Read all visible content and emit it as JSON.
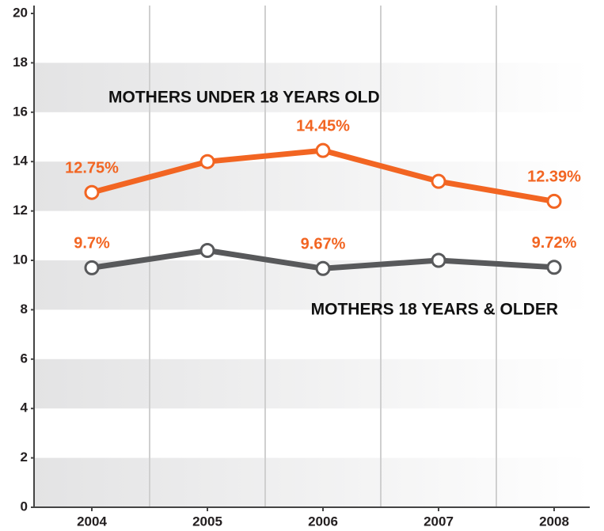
{
  "chart_data": {
    "type": "line",
    "categories": [
      "2004",
      "2005",
      "2006",
      "2007",
      "2008"
    ],
    "series": [
      {
        "name": "MOTHERS UNDER 18 YEARS OLD",
        "color": "#f26522",
        "values": [
          12.75,
          14.0,
          14.45,
          13.2,
          12.39
        ],
        "value_labels": [
          "12.75%",
          null,
          "14.45%",
          null,
          "12.39%"
        ]
      },
      {
        "name": "MOTHERS 18 YEARS & OLDER",
        "color": "#58595b",
        "values": [
          9.7,
          10.4,
          9.67,
          10.0,
          9.72
        ],
        "value_labels": [
          "9.7%",
          null,
          "9.67%",
          null,
          "9.72%"
        ]
      }
    ],
    "ylim": [
      0,
      20
    ],
    "yticks": [
      0,
      2,
      4,
      6,
      8,
      10,
      12,
      14,
      16,
      18,
      20
    ],
    "label_color": "#f26522",
    "grid": true
  }
}
